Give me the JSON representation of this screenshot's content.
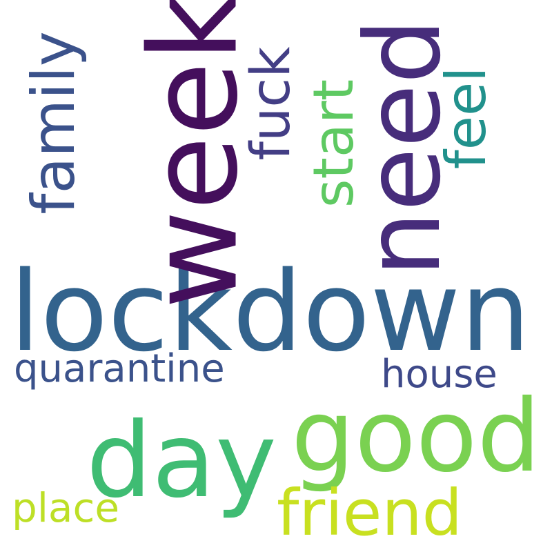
{
  "words": [
    {
      "text": "lockdown",
      "color": "#33638d",
      "orientation": "horizontal"
    },
    {
      "text": "week",
      "color": "#440f5c",
      "orientation": "vertical"
    },
    {
      "text": "need",
      "color": "#472d7b",
      "orientation": "vertical"
    },
    {
      "text": "good",
      "color": "#7ad151",
      "orientation": "horizontal"
    },
    {
      "text": "day",
      "color": "#3fbc73",
      "orientation": "horizontal"
    },
    {
      "text": "family",
      "color": "#3b528b",
      "orientation": "vertical"
    },
    {
      "text": "fuck",
      "color": "#433e85",
      "orientation": "vertical"
    },
    {
      "text": "start",
      "color": "#5ec962",
      "orientation": "vertical"
    },
    {
      "text": "feel",
      "color": "#21918c",
      "orientation": "vertical"
    },
    {
      "text": "friend",
      "color": "#c8e020",
      "orientation": "horizontal"
    },
    {
      "text": "quarantine",
      "color": "#3b528b",
      "orientation": "horizontal"
    },
    {
      "text": "house",
      "color": "#3e4989",
      "orientation": "horizontal"
    },
    {
      "text": "place",
      "color": "#bddf26",
      "orientation": "horizontal"
    }
  ]
}
